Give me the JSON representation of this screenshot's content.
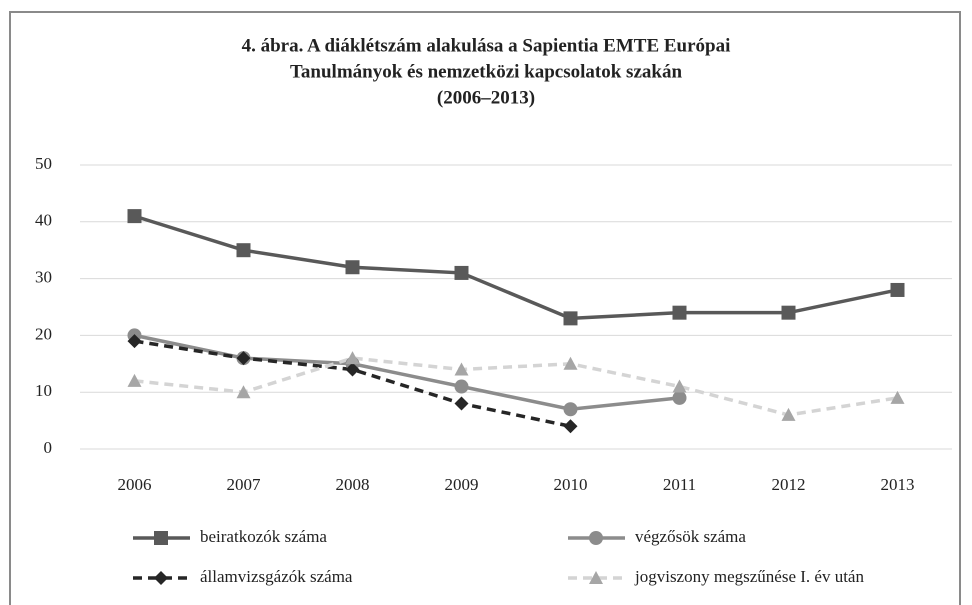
{
  "chart_data": {
    "type": "line",
    "title": [
      "4. ábra. A diáklétszám alakulása a Sapientia EMTE Európai",
      "Tanulmányok és nemzetközi kapcsolatok szakán",
      "(2006–2013)"
    ],
    "categories": [
      "2006",
      "2007",
      "2008",
      "2009",
      "2010",
      "2011",
      "2012",
      "2013"
    ],
    "series": [
      {
        "name": "beiratkozók száma",
        "color": "#595959",
        "marker": "square",
        "dash": false,
        "values": [
          41,
          35,
          32,
          31,
          23,
          24,
          24,
          28
        ]
      },
      {
        "name": "végzősök száma",
        "color": "#8c8c8c",
        "marker": "circle",
        "dash": false,
        "values": [
          20,
          16,
          15,
          11,
          7,
          9,
          null,
          null
        ]
      },
      {
        "name": "államvizsgázók száma",
        "color": "#262626",
        "marker": "diamond",
        "dash": true,
        "values": [
          19,
          16,
          14,
          8,
          4,
          null,
          null,
          null
        ]
      },
      {
        "name": "jogviszony megszűnése I. év után",
        "color": "#d4d4d4",
        "marker": "triangle",
        "dash": true,
        "values": [
          12,
          10,
          16,
          14,
          15,
          11,
          6,
          9
        ]
      }
    ],
    "ylim": [
      0,
      50
    ],
    "yticks": [
      0,
      10,
      20,
      30,
      40,
      50
    ],
    "grid": true,
    "legend": "bottom"
  }
}
